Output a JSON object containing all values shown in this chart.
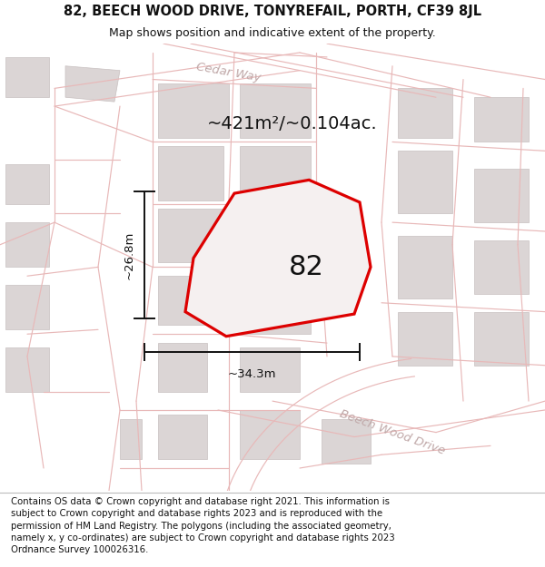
{
  "title_line1": "82, BEECH WOOD DRIVE, TONYREFAIL, PORTH, CF39 8JL",
  "title_line2": "Map shows position and indicative extent of the property.",
  "area_label": "~421m²/~0.104ac.",
  "plot_number": "82",
  "width_label": "~34.3m",
  "height_label": "~26.8m",
  "footer_text": "Contains OS data © Crown copyright and database right 2021. This information is subject to Crown copyright and database rights 2023 and is reproduced with the permission of HM Land Registry. The polygons (including the associated geometry, namely x, y co-ordinates) are subject to Crown copyright and database rights 2023 Ordnance Survey 100026316.",
  "map_bg": "#f5f0f0",
  "parcel_bg": "#f0ecec",
  "plot_fill": "#f5f0f0",
  "plot_edge": "#dd0000",
  "road_line_color": "#e8b8b8",
  "building_color": "#dbd5d5",
  "building_edge": "#c8c0c0",
  "street_label_color": "#c0a8a8",
  "street_label_beech": "Beech Wood Drive",
  "street_label_cedar": "Cedar Way",
  "header_bg": "#ffffff",
  "footer_bg": "#ffffff",
  "title_color": "#111111",
  "dim_color": "#111111",
  "label_color": "#111111"
}
